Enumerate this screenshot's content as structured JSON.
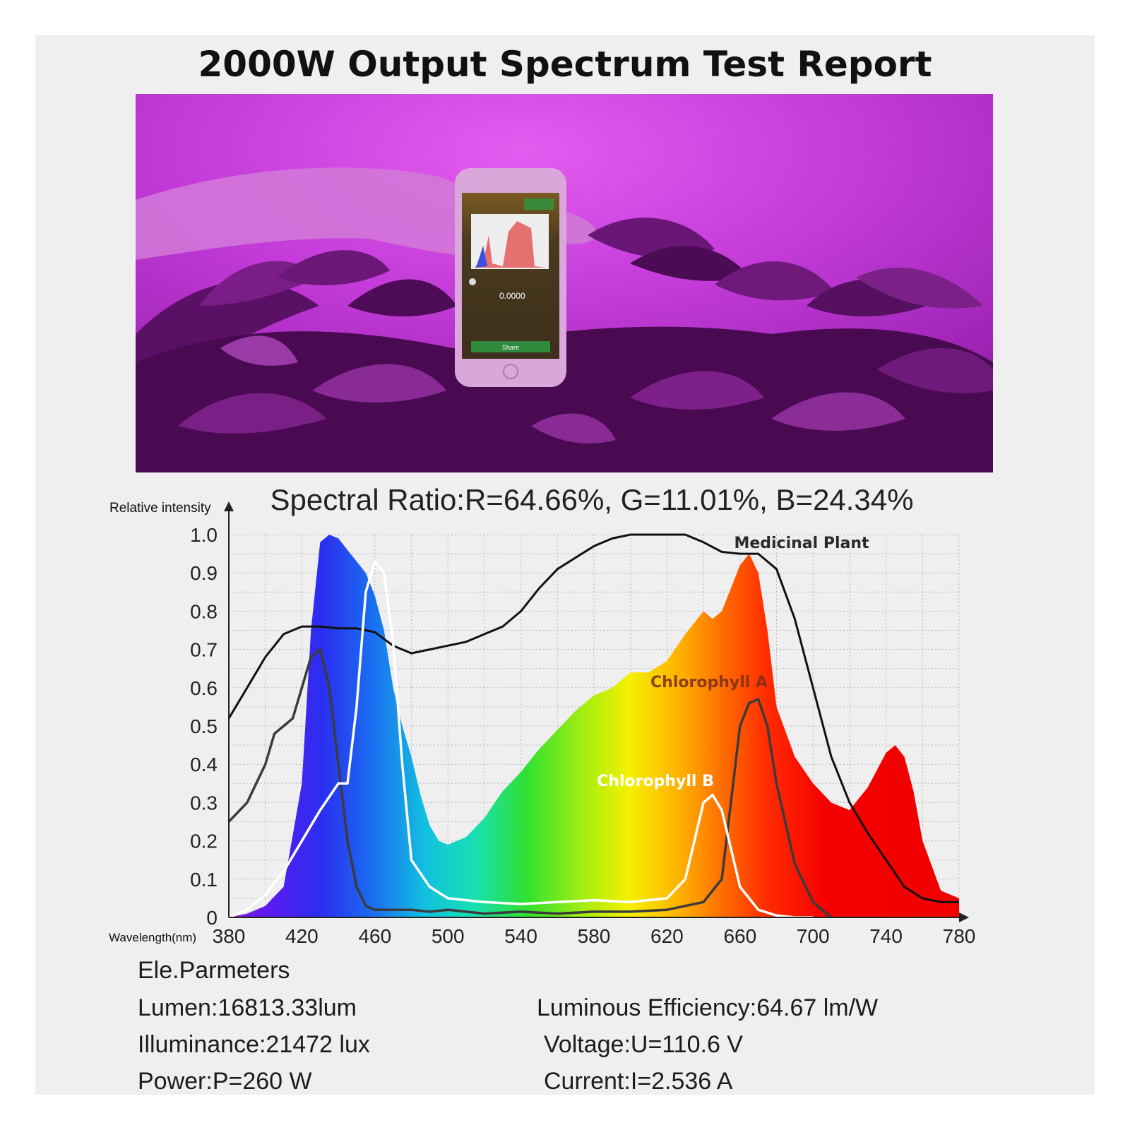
{
  "header": {
    "title": "2000W Output Spectrum Test Report"
  },
  "photo": {
    "phone_screen": {
      "value_text": "0.0000",
      "button_label": "Share"
    }
  },
  "chart_data": {
    "type": "area",
    "title": "Spectral Ratio:R=64.66%, G=11.01%, B=24.34%",
    "ylabel": "Relative intensity",
    "xlabel": "Wavelength(nm)",
    "xlim": [
      380,
      780
    ],
    "ylim": [
      0,
      1.0
    ],
    "x_ticks": [
      "380",
      "420",
      "460",
      "500",
      "540",
      "580",
      "620",
      "660",
      "700",
      "740",
      "780"
    ],
    "y_ticks": [
      "0",
      "0.1",
      "0.2",
      "0.3",
      "0.4",
      "0.5",
      "0.6",
      "0.7",
      "0.8",
      "0.9",
      "1.0"
    ],
    "grid": true,
    "series": [
      {
        "name": "",
        "label_printed": false,
        "style": "rainbow-filled-area",
        "x": [
          380,
          390,
          400,
          410,
          420,
          425,
          430,
          435,
          440,
          445,
          450,
          455,
          460,
          465,
          470,
          475,
          480,
          485,
          490,
          495,
          500,
          510,
          520,
          530,
          540,
          550,
          560,
          570,
          580,
          585,
          590,
          600,
          610,
          620,
          630,
          640,
          645,
          650,
          655,
          660,
          665,
          670,
          675,
          680,
          690,
          700,
          710,
          720,
          730,
          740,
          745,
          750,
          755,
          760,
          770,
          780
        ],
        "y": [
          0,
          0.01,
          0.03,
          0.08,
          0.35,
          0.75,
          0.98,
          1.0,
          0.99,
          0.96,
          0.93,
          0.9,
          0.84,
          0.75,
          0.6,
          0.5,
          0.42,
          0.32,
          0.24,
          0.2,
          0.19,
          0.21,
          0.26,
          0.33,
          0.38,
          0.44,
          0.49,
          0.54,
          0.58,
          0.59,
          0.6,
          0.64,
          0.64,
          0.67,
          0.74,
          0.8,
          0.78,
          0.8,
          0.86,
          0.92,
          0.95,
          0.9,
          0.75,
          0.55,
          0.42,
          0.35,
          0.3,
          0.28,
          0.34,
          0.43,
          0.45,
          0.42,
          0.33,
          0.2,
          0.07,
          0.05
        ]
      },
      {
        "name": "Medicinal Plant",
        "style": "black-line",
        "x": [
          380,
          390,
          400,
          410,
          420,
          430,
          440,
          450,
          460,
          470,
          480,
          490,
          500,
          510,
          520,
          530,
          540,
          550,
          560,
          570,
          580,
          590,
          600,
          610,
          620,
          630,
          640,
          650,
          660,
          670,
          680,
          690,
          700,
          710,
          720,
          730,
          740,
          750,
          760,
          770,
          780
        ],
        "y": [
          0.52,
          0.6,
          0.68,
          0.74,
          0.76,
          0.76,
          0.755,
          0.755,
          0.745,
          0.71,
          0.69,
          0.7,
          0.71,
          0.72,
          0.74,
          0.76,
          0.8,
          0.86,
          0.91,
          0.94,
          0.97,
          0.99,
          1.0,
          1.0,
          1.0,
          1.0,
          0.98,
          0.955,
          0.95,
          0.95,
          0.91,
          0.78,
          0.6,
          0.42,
          0.3,
          0.22,
          0.15,
          0.08,
          0.05,
          0.04,
          0.04
        ]
      },
      {
        "name": "Chlorophyll A",
        "style": "dark-gray-line",
        "x": [
          380,
          390,
          400,
          405,
          410,
          415,
          420,
          425,
          430,
          435,
          440,
          445,
          450,
          455,
          460,
          470,
          480,
          490,
          500,
          520,
          540,
          560,
          580,
          600,
          620,
          640,
          650,
          655,
          660,
          665,
          670,
          675,
          680,
          690,
          700,
          710
        ],
        "y": [
          0.25,
          0.3,
          0.4,
          0.48,
          0.5,
          0.52,
          0.6,
          0.68,
          0.7,
          0.6,
          0.4,
          0.2,
          0.08,
          0.03,
          0.02,
          0.02,
          0.02,
          0.015,
          0.02,
          0.01,
          0.015,
          0.01,
          0.015,
          0.015,
          0.02,
          0.04,
          0.1,
          0.3,
          0.5,
          0.56,
          0.57,
          0.5,
          0.35,
          0.14,
          0.04,
          0.0
        ]
      },
      {
        "name": "Chlorophyll B",
        "style": "white-line",
        "x": [
          380,
          390,
          400,
          410,
          420,
          430,
          440,
          445,
          450,
          455,
          460,
          465,
          470,
          475,
          480,
          490,
          500,
          520,
          540,
          560,
          580,
          600,
          620,
          630,
          635,
          640,
          645,
          650,
          655,
          660,
          670,
          680,
          690,
          700
        ],
        "y": [
          0,
          0.02,
          0.06,
          0.12,
          0.2,
          0.28,
          0.35,
          0.35,
          0.55,
          0.85,
          0.93,
          0.9,
          0.72,
          0.4,
          0.15,
          0.08,
          0.05,
          0.04,
          0.035,
          0.04,
          0.045,
          0.04,
          0.05,
          0.1,
          0.2,
          0.3,
          0.32,
          0.28,
          0.18,
          0.08,
          0.02,
          0.005,
          0.0,
          0.0
        ]
      }
    ],
    "annotations": [
      "Medicinal Plant",
      "Chlorophyll A",
      "Chlorophyll B"
    ]
  },
  "parameters": {
    "title": "Ele.Parmeters",
    "left": [
      "Lumen:16813.33lum",
      "Illuminance:21472 lux",
      "Power:P=260 W"
    ],
    "right": [
      "Luminous Efficiency:64.67 lm/W",
      "Voltage:U=110.6 V",
      "Current:I=2.536 A"
    ]
  },
  "colors": {
    "background": "#efefef",
    "photo_magenta": "#b92ad0",
    "chart_line": "#111111"
  }
}
